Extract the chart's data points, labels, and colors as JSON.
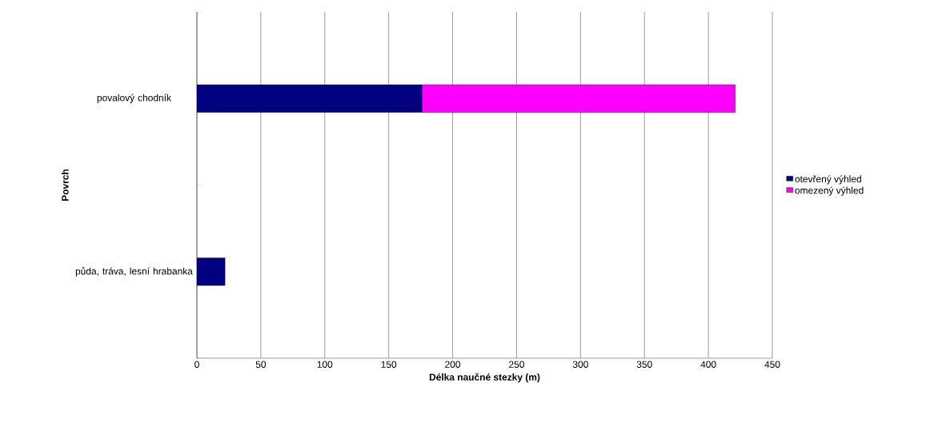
{
  "chart_data": {
    "type": "bar",
    "orientation": "horizontal",
    "stacked": true,
    "xlabel": "Délka naučné stezky (m)",
    "ylabel": "Povrch",
    "categories": [
      "povalový chodník",
      "půda, tráva, lesní hrabanka"
    ],
    "series": [
      {
        "name": "otevřený výhled",
        "color": "#000080",
        "values": [
          176,
          22
        ]
      },
      {
        "name": "omezený výhled",
        "color": "#ff00ff",
        "values": [
          245,
          null
        ]
      }
    ],
    "xlim": [
      0,
      450
    ],
    "xticks": [
      0,
      50,
      100,
      150,
      200,
      250,
      300,
      350,
      400,
      450
    ],
    "grid": "x",
    "legend": "right"
  }
}
